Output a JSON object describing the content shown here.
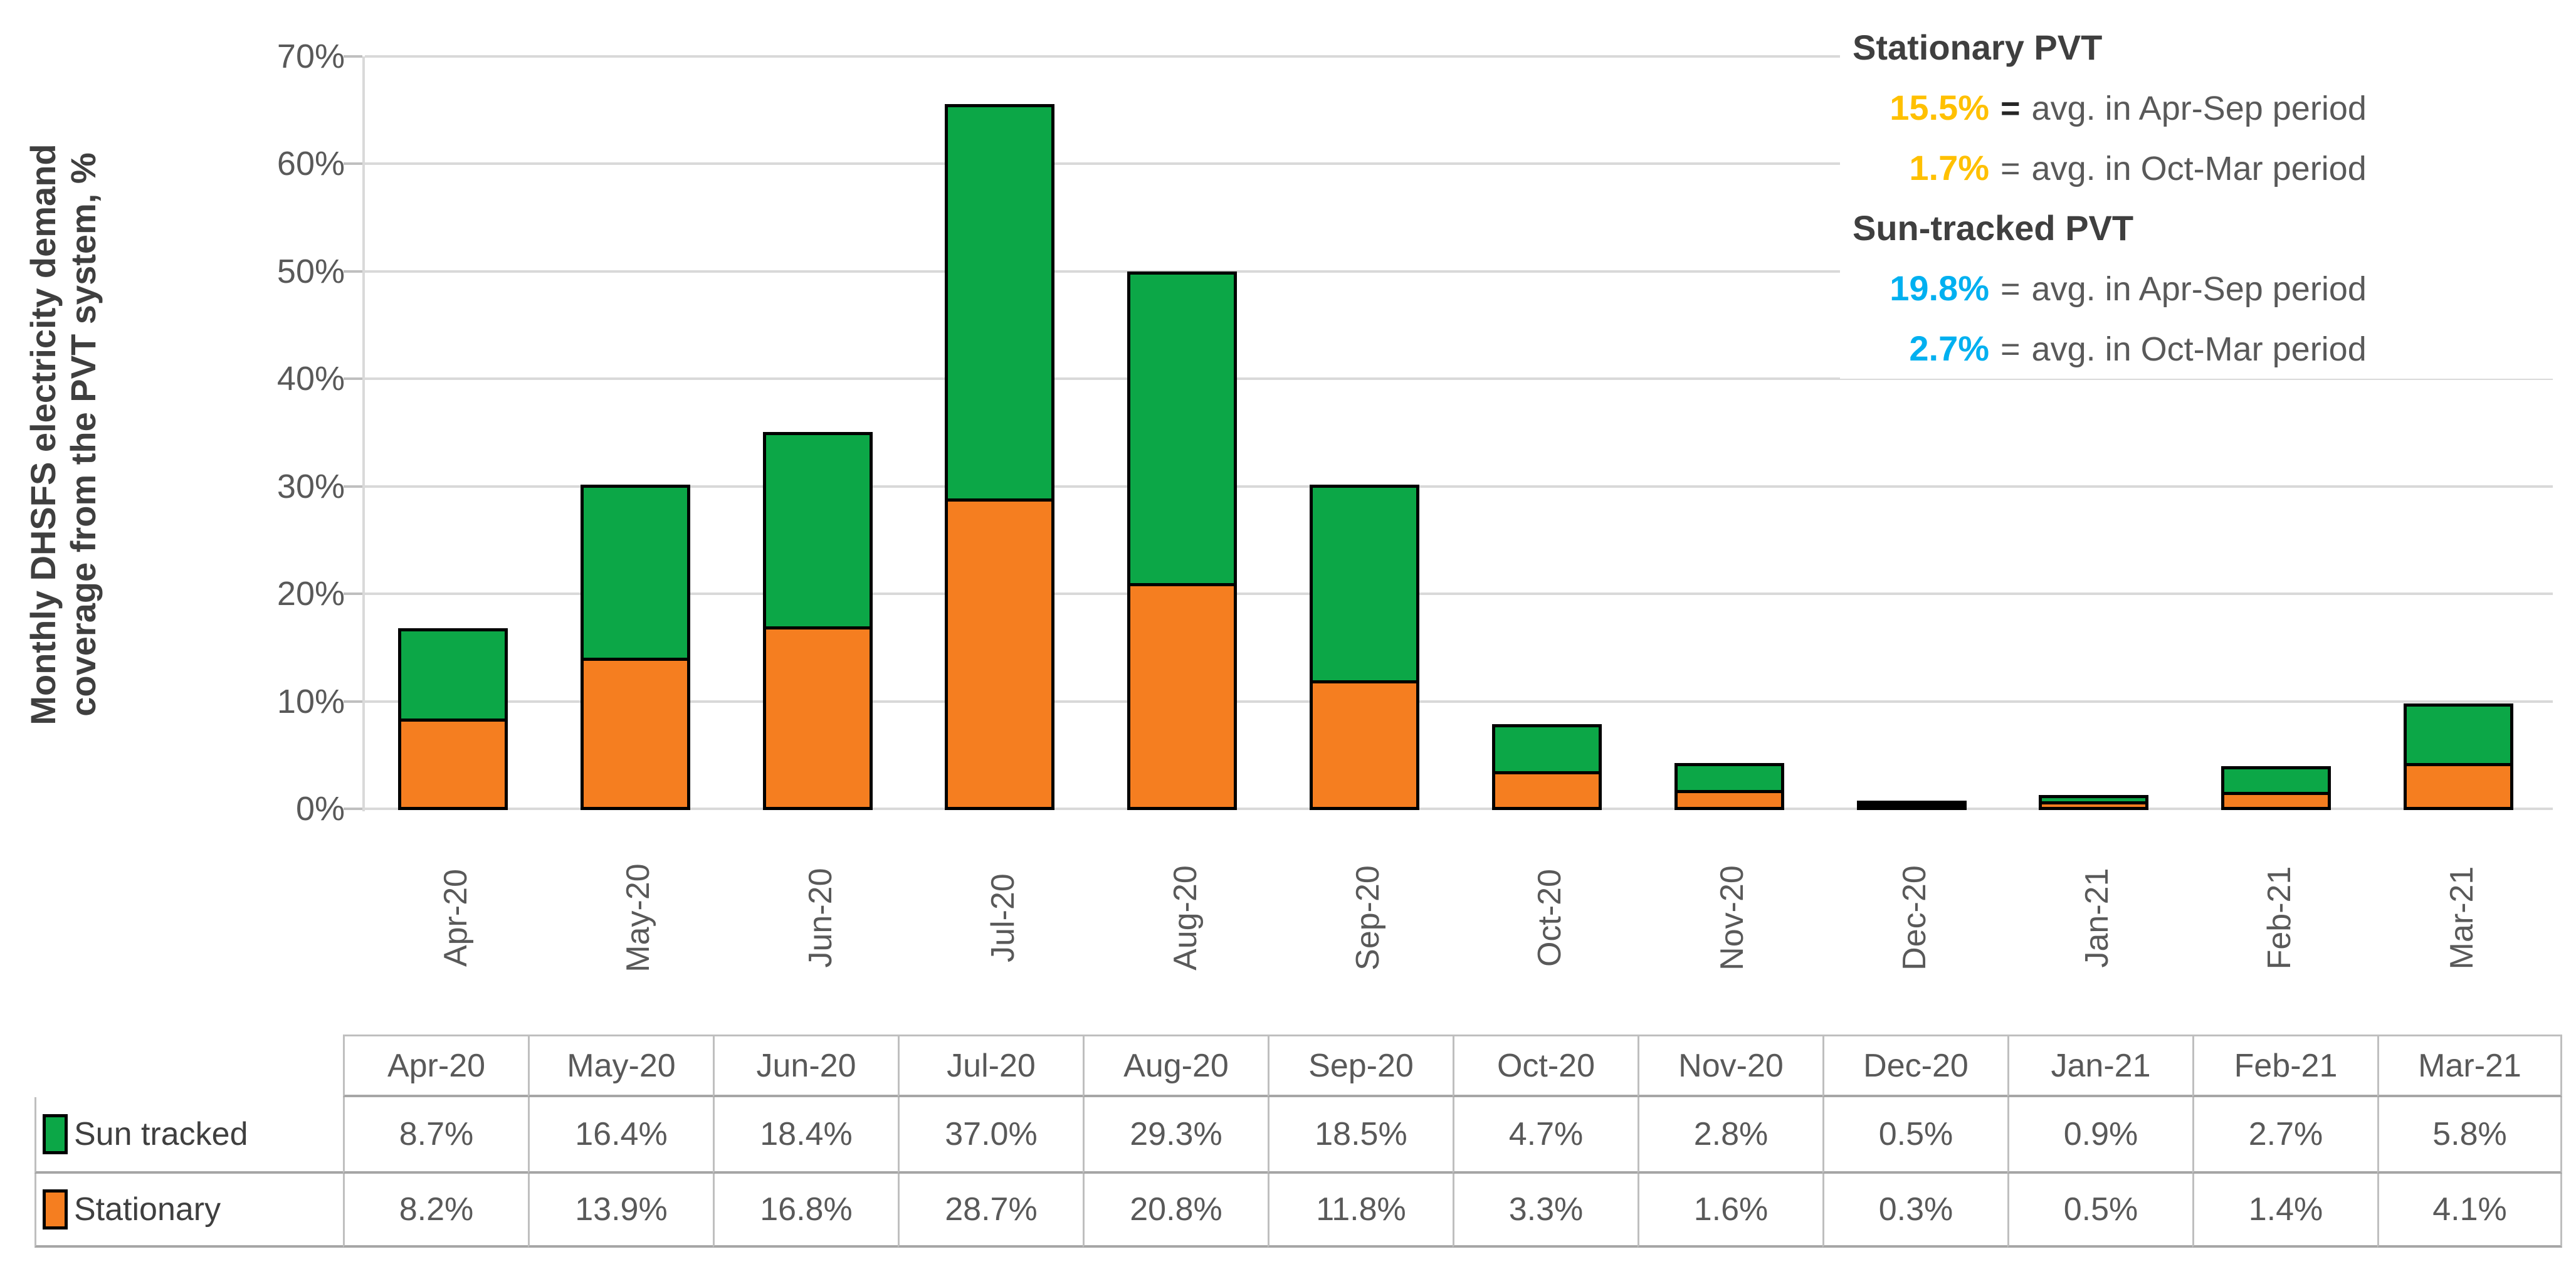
{
  "chart_data": {
    "type": "bar",
    "stacked": true,
    "categories": [
      "Apr-20",
      "May-20",
      "Jun-20",
      "Jul-20",
      "Aug-20",
      "Sep-20",
      "Oct-20",
      "Nov-20",
      "Dec-20",
      "Jan-21",
      "Feb-21",
      "Mar-21"
    ],
    "series": [
      {
        "name": "Stationary",
        "color": "#F57E20",
        "values": [
          8.2,
          13.9,
          16.8,
          28.7,
          20.8,
          11.8,
          3.3,
          1.6,
          0.3,
          0.5,
          1.4,
          4.1
        ]
      },
      {
        "name": "Sun tracked",
        "color": "#0CA747",
        "values": [
          8.7,
          16.4,
          18.4,
          37.0,
          29.3,
          18.5,
          4.7,
          2.8,
          0.5,
          0.9,
          2.7,
          5.8
        ]
      }
    ],
    "stack_order_bottom_to_top": [
      "Stationary",
      "Sun tracked"
    ],
    "ylabel_line1": "Monthly DHSFS electricity demand",
    "ylabel_line2": "coverage from the PVT system, %",
    "xlabel": "",
    "title": "",
    "ylim": [
      0,
      70
    ],
    "ytick_labels_top_down": [
      "70%",
      "60%",
      "50%",
      "40%",
      "30%",
      "20%",
      "10%",
      "0%"
    ],
    "grid": "horizontal",
    "bar_border_color": "#000000",
    "gridline_color": "#D9D9D9"
  },
  "annotation": {
    "sections": [
      {
        "title": "Stationary PVT",
        "value_color": "#FFC000",
        "rows": [
          {
            "value": "15.5%",
            "eq": "=",
            "text": "avg. in Apr-Sep period",
            "eq_dark": true
          },
          {
            "value": "1.7%",
            "eq": "=",
            "text": "avg. in Oct-Mar period",
            "eq_dark": false
          }
        ]
      },
      {
        "title": "Sun-tracked PVT",
        "value_color": "#00B0F0",
        "rows": [
          {
            "value": "19.8%",
            "eq": "=",
            "text": "avg. in Apr-Sep period",
            "eq_dark": false
          },
          {
            "value": "2.7%",
            "eq": "=",
            "text": "avg. in Oct-Mar period",
            "eq_dark": false
          }
        ]
      }
    ]
  },
  "table": {
    "corner_label": "",
    "columns": [
      "Apr-20",
      "May-20",
      "Jun-20",
      "Jul-20",
      "Aug-20",
      "Sep-20",
      "Oct-20",
      "Nov-20",
      "Dec-20",
      "Jan-21",
      "Feb-21",
      "Mar-21"
    ],
    "rows": [
      {
        "label": "Sun tracked",
        "swatch_color": "#0CA747",
        "values": [
          "8.7%",
          "16.4%",
          "18.4%",
          "37.0%",
          "29.3%",
          "18.5%",
          "4.7%",
          "2.8%",
          "0.5%",
          "0.9%",
          "2.7%",
          "5.8%"
        ]
      },
      {
        "label": "Stationary",
        "swatch_color": "#F57E20",
        "values": [
          "8.2%",
          "13.9%",
          "16.8%",
          "28.7%",
          "20.8%",
          "11.8%",
          "3.3%",
          "1.6%",
          "0.3%",
          "0.5%",
          "1.4%",
          "4.1%"
        ]
      }
    ]
  }
}
